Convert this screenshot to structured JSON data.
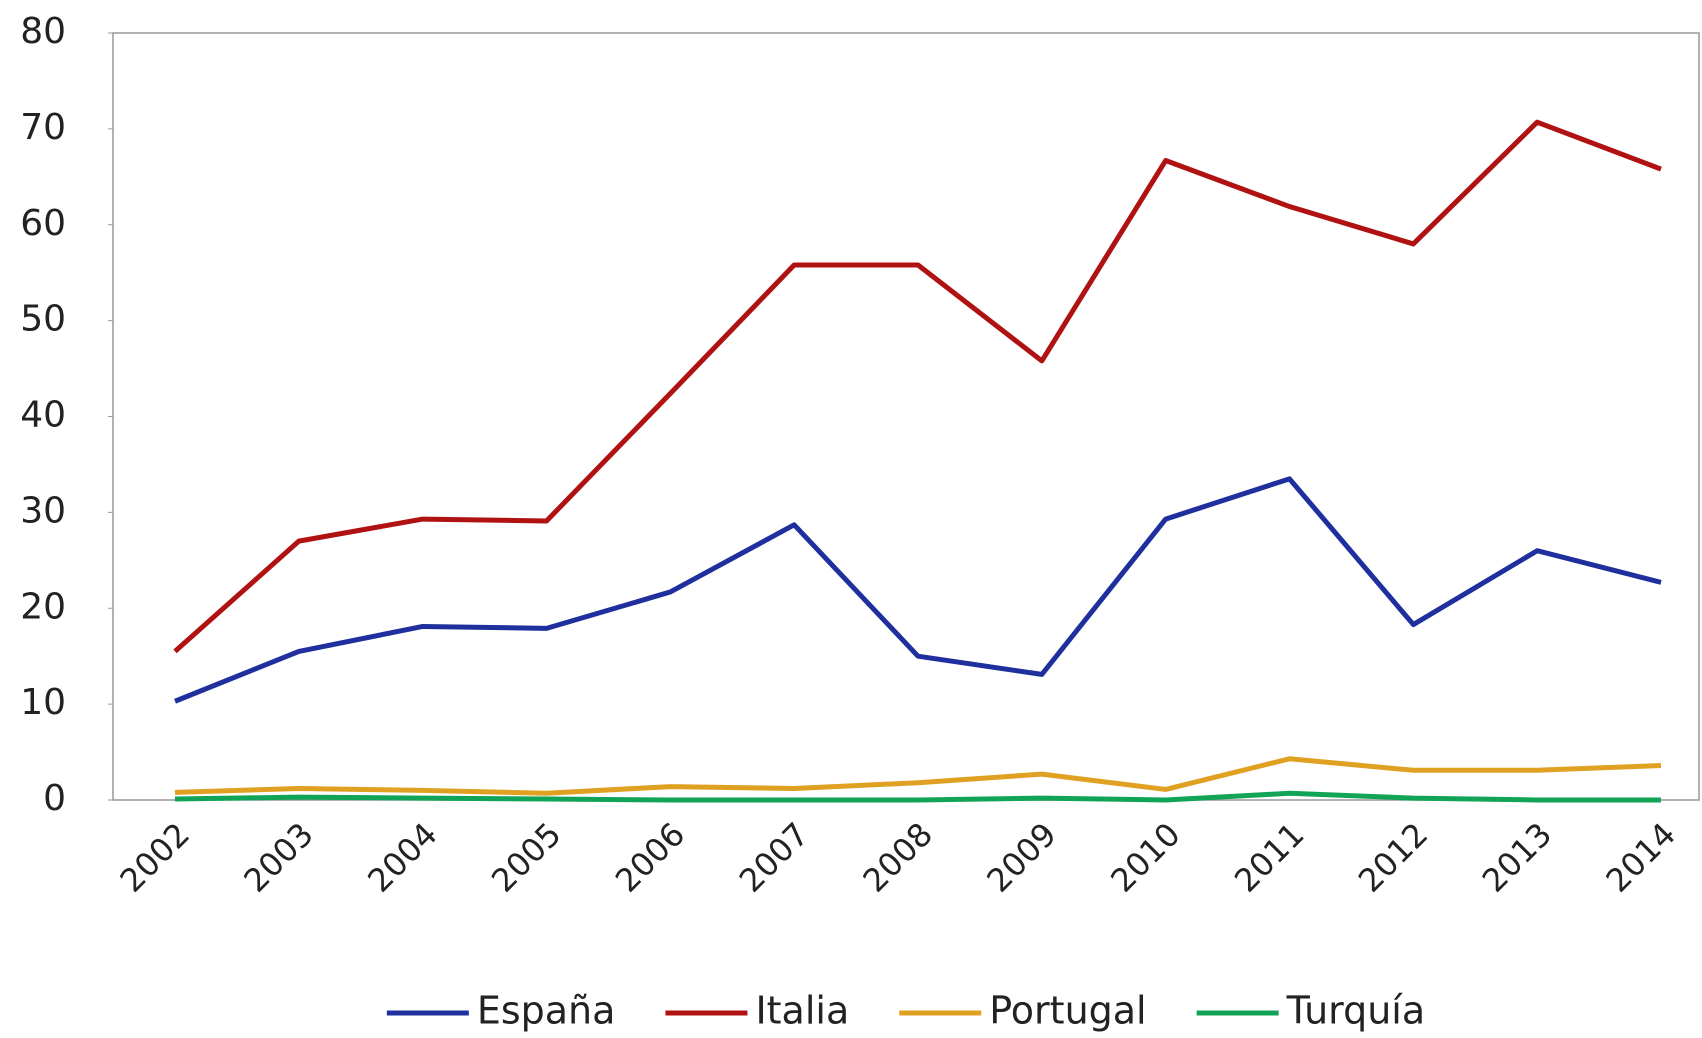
{
  "chart_data": {
    "type": "line",
    "categories": [
      "2002",
      "2003",
      "2004",
      "2005",
      "2006",
      "2007",
      "2008",
      "2009",
      "2010",
      "2011",
      "2012",
      "2013",
      "2014"
    ],
    "series": [
      {
        "name": "España",
        "color": "#1f2f9e",
        "values": [
          10.3,
          15.5,
          18.1,
          17.9,
          21.7,
          28.7,
          15.0,
          13.1,
          29.3,
          33.5,
          18.3,
          26.0,
          22.7
        ]
      },
      {
        "name": "Italia",
        "color": "#b01212",
        "values": [
          15.5,
          27.0,
          29.3,
          29.1,
          42.4,
          55.8,
          55.8,
          45.8,
          66.7,
          61.9,
          58.0,
          70.7,
          65.8
        ]
      },
      {
        "name": "Portugal",
        "color": "#e0a021",
        "values": [
          0.8,
          1.2,
          1.0,
          0.7,
          1.4,
          1.2,
          1.8,
          2.7,
          1.1,
          4.3,
          3.1,
          3.1,
          3.6
        ]
      },
      {
        "name": "Turquía",
        "color": "#12a456",
        "values": [
          0.1,
          0.3,
          0.2,
          0.1,
          0,
          0,
          0,
          0.2,
          0,
          0.7,
          0.2,
          0,
          0
        ]
      }
    ],
    "ylim": [
      0,
      80
    ],
    "yticks": [
      0,
      10,
      20,
      30,
      40,
      50,
      60,
      70,
      80
    ],
    "grid": false,
    "legend": "bottom"
  }
}
